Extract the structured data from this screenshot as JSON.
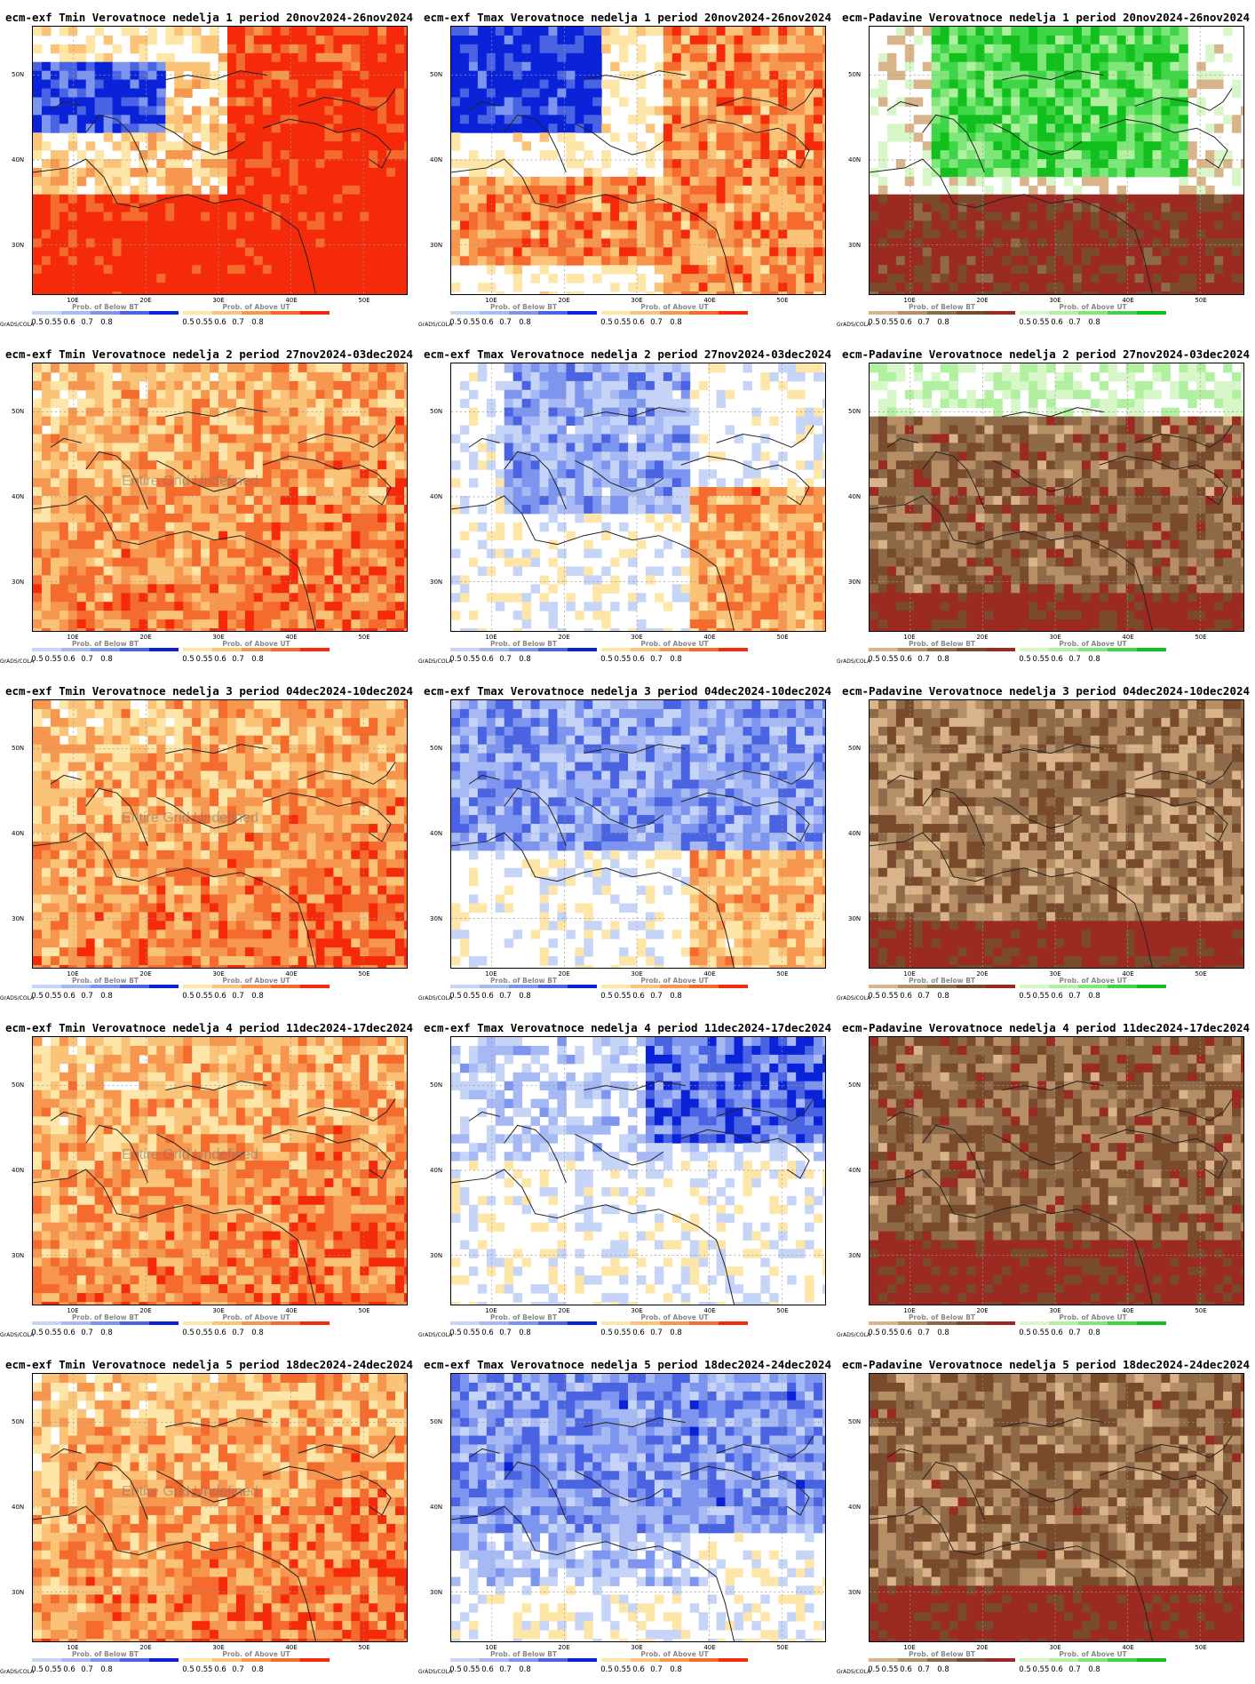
{
  "grads_label": "GrADS/COLA",
  "undefined_label": "Entire Grid Undefined",
  "lat_labels": [
    "50N",
    "40N",
    "30N"
  ],
  "lon_labels": [
    "10E",
    "20E",
    "30E",
    "40E",
    "50E"
  ],
  "legend_ticks": [
    "0.5",
    "0.55",
    "0.6",
    "0.7",
    "0.8"
  ],
  "legend_titles": {
    "below": "Prob. of Below BT",
    "above": "Prob. of Above UT"
  },
  "colors": {
    "blue_scale": [
      "#c6d4f7",
      "#a6b9f5",
      "#7d95ef",
      "#4a63e3",
      "#0b23d8"
    ],
    "red_scale": [
      "#fde6a8",
      "#fbc378",
      "#f7964e",
      "#f56a2d",
      "#f52a0a"
    ],
    "green_scale": [
      "#d7f7c8",
      "#b0f0a0",
      "#7fe77a",
      "#3ed547",
      "#11c01c"
    ],
    "brown_scale": [
      "#d9b48a",
      "#b78f66",
      "#8f6a48",
      "#7a4a2c",
      "#9a2a22"
    ]
  },
  "panels": [
    {
      "title": "ecm-exf Tmin Verovatnoce nedelja 1 period 20nov2024-26nov2024",
      "var": "tmin",
      "week": 1,
      "show_undefined": false
    },
    {
      "title": "ecm-exf Tmax Verovatnoce nedelja 1 period 20nov2024-26nov2024",
      "var": "tmax",
      "week": 1,
      "show_undefined": false
    },
    {
      "title": "ecm-Padavine Verovatnoce nedelja 1 period 20nov2024-26nov2024",
      "var": "precip",
      "week": 1,
      "show_undefined": false
    },
    {
      "title": "ecm-exf Tmin Verovatnoce nedelja 2 period 27nov2024-03dec2024",
      "var": "tmin",
      "week": 2,
      "show_undefined": true
    },
    {
      "title": "ecm-exf Tmax Verovatnoce nedelja 2 period 27nov2024-03dec2024",
      "var": "tmax",
      "week": 2,
      "show_undefined": false
    },
    {
      "title": "ecm-Padavine Verovatnoce nedelja 2 period 27nov2024-03dec2024",
      "var": "precip",
      "week": 2,
      "show_undefined": false
    },
    {
      "title": "ecm-exf Tmin Verovatnoce nedelja 3 period 04dec2024-10dec2024",
      "var": "tmin",
      "week": 3,
      "show_undefined": true
    },
    {
      "title": "ecm-exf Tmax Verovatnoce nedelja 3 period 04dec2024-10dec2024",
      "var": "tmax",
      "week": 3,
      "show_undefined": false
    },
    {
      "title": "ecm-Padavine Verovatnoce nedelja 3 period 04dec2024-10dec2024",
      "var": "precip",
      "week": 3,
      "show_undefined": false
    },
    {
      "title": "ecm-exf Tmin Verovatnoce nedelja 4 period 11dec2024-17dec2024",
      "var": "tmin",
      "week": 4,
      "show_undefined": true
    },
    {
      "title": "ecm-exf Tmax Verovatnoce nedelja 4 period 11dec2024-17dec2024",
      "var": "tmax",
      "week": 4,
      "show_undefined": false
    },
    {
      "title": "ecm-Padavine Verovatnoce nedelja 4 period 11dec2024-17dec2024",
      "var": "precip",
      "week": 4,
      "show_undefined": false
    },
    {
      "title": "ecm-exf Tmin Verovatnoce nedelja 5 period 18dec2024-24dec2024",
      "var": "tmin",
      "week": 5,
      "show_undefined": true
    },
    {
      "title": "ecm-exf Tmax Verovatnoce nedelja 5 period 18dec2024-24dec2024",
      "var": "tmax",
      "week": 5,
      "show_undefined": false
    },
    {
      "title": "ecm-Padavine Verovatnoce nedelja 5 period 18dec2024-24dec2024",
      "var": "precip",
      "week": 5,
      "show_undefined": false
    }
  ]
}
